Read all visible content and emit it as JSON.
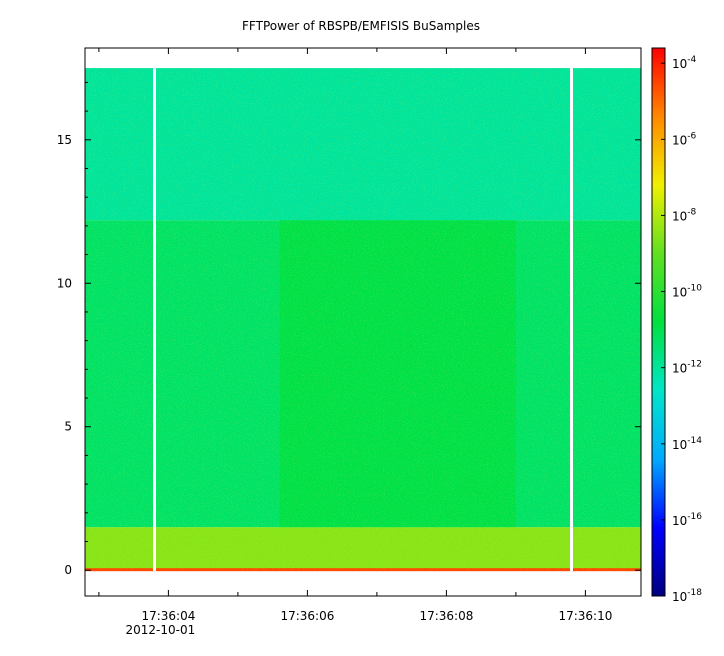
{
  "chart_data": {
    "type": "heatmap",
    "title": "FFTPower of RBSPB/EMFISIS  BuSamples",
    "xlabel": "",
    "ylabel": "",
    "x_ticks": [
      {
        "label": "17:36:04",
        "sublabel": "2012-10-01",
        "seconds": 4
      },
      {
        "label": "17:36:06",
        "sublabel": "",
        "seconds": 6
      },
      {
        "label": "17:36:08",
        "sublabel": "",
        "seconds": 8
      },
      {
        "label": "17:36:10",
        "sublabel": "",
        "seconds": 10
      }
    ],
    "x_minor_ticks_seconds": [
      3,
      5,
      7,
      9
    ],
    "xlim_seconds": [
      2.8,
      10.8
    ],
    "y_ticks": [
      0,
      5,
      10,
      15
    ],
    "ylim": [
      -0.9,
      18.2
    ],
    "data_ymax": 17.5,
    "data_gaps_seconds": [
      3.8,
      9.8
    ],
    "bands": [
      {
        "name": "low-frequency",
        "y_range": [
          0,
          1.5
        ],
        "log_power": -8.5
      },
      {
        "name": "quiet-fill",
        "y_range": [
          1.5,
          12.2
        ],
        "log_power": -11.3
      },
      {
        "name": "active-fill",
        "x_range_seconds": [
          5.6,
          9.0
        ],
        "y_range": [
          1.5,
          12.2
        ],
        "log_power": -10.9
      },
      {
        "name": "upper",
        "y_range": [
          12.2,
          17.5
        ],
        "log_power": -12.0
      }
    ],
    "colorbar": {
      "scale": "log",
      "exponent_ticks": [
        -4,
        -6,
        -8,
        -10,
        -12,
        -14,
        -16,
        -18
      ],
      "zlim_log": [
        -18,
        -3.6
      ],
      "colors": [
        "#000080",
        "#0000ff",
        "#00aaff",
        "#00e6c8",
        "#00e040",
        "#60e020",
        "#f0f000",
        "#ff8800",
        "#ff0000"
      ]
    },
    "legend": "none"
  }
}
